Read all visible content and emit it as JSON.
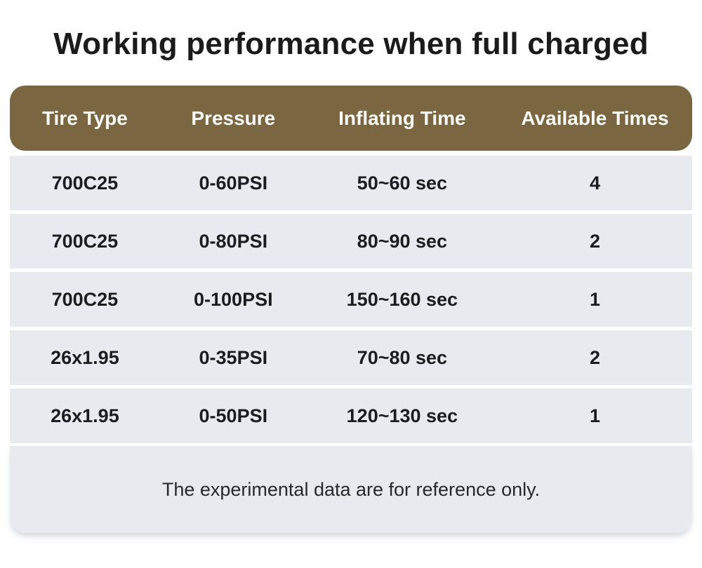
{
  "title": "Working performance when full charged",
  "colors": {
    "page_bg": "#ffffff",
    "header_bg": "#7a6742",
    "header_text": "#fbfaf6",
    "row_bg": "#e8eaf0",
    "separator": "#f7f9fb",
    "body_text": "#1c1c1e",
    "footnote_text": "#28282a",
    "title_text": "#1b1b1c"
  },
  "chart_data": {
    "type": "table",
    "title": "Working performance when full charged",
    "columns": [
      "Tire Type",
      "Pressure",
      "Inflating Time",
      "Available Times"
    ],
    "rows": [
      [
        "700C25",
        "0-60PSI",
        "50~60 sec",
        "4"
      ],
      [
        "700C25",
        "0-80PSI",
        "80~90 sec",
        "2"
      ],
      [
        "700C25",
        "0-100PSI",
        "150~160 sec",
        "1"
      ],
      [
        "26x1.95",
        "0-35PSI",
        "70~80 sec",
        "2"
      ],
      [
        "26x1.95",
        "0-50PSI",
        "120~130 sec",
        "1"
      ]
    ],
    "footnote": "The experimental data are for reference only.",
    "legend_position": "none",
    "grid": false
  }
}
